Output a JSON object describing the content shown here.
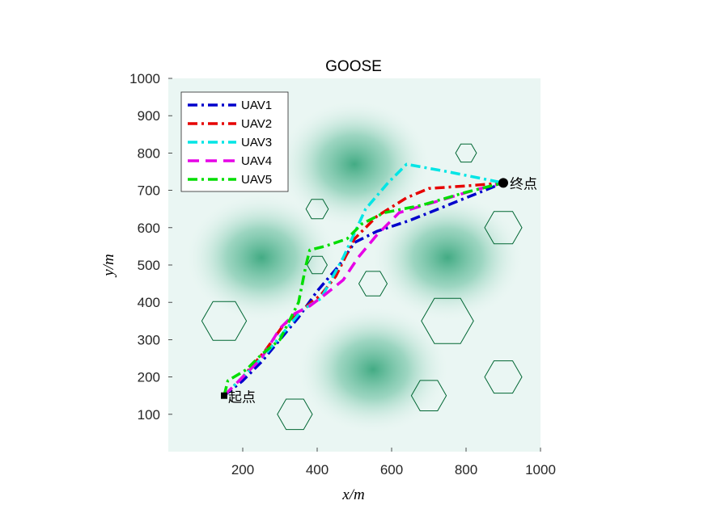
{
  "chart_data": {
    "type": "line",
    "title": "GOOSE",
    "xlabel": "x/m",
    "ylabel": "y/m",
    "xlim": [
      0,
      1000
    ],
    "ylim": [
      0,
      1000
    ],
    "xticks": [
      200,
      400,
      600,
      800,
      1000
    ],
    "yticks": [
      100,
      200,
      300,
      400,
      500,
      600,
      700,
      800,
      900,
      1000
    ],
    "legend_position": "top-left",
    "start": {
      "x": 150,
      "y": 150,
      "label": "起点"
    },
    "goal": {
      "x": 900,
      "y": 720,
      "label": "终点"
    },
    "series": [
      {
        "name": "UAV1",
        "color": "#0000cc",
        "dash": "dashdot",
        "points": [
          [
            150,
            150
          ],
          [
            200,
            190
          ],
          [
            250,
            240
          ],
          [
            300,
            300
          ],
          [
            350,
            360
          ],
          [
            400,
            430
          ],
          [
            460,
            500
          ],
          [
            500,
            560
          ],
          [
            560,
            590
          ],
          [
            650,
            620
          ],
          [
            750,
            660
          ],
          [
            850,
            700
          ],
          [
            900,
            720
          ]
        ]
      },
      {
        "name": "UAV2",
        "color": "#e60000",
        "dash": "dashdot",
        "points": [
          [
            150,
            150
          ],
          [
            200,
            200
          ],
          [
            260,
            270
          ],
          [
            310,
            340
          ],
          [
            360,
            380
          ],
          [
            410,
            420
          ],
          [
            450,
            470
          ],
          [
            500,
            570
          ],
          [
            560,
            630
          ],
          [
            640,
            680
          ],
          [
            700,
            705
          ],
          [
            800,
            712
          ],
          [
            900,
            720
          ]
        ]
      },
      {
        "name": "UAV3",
        "color": "#00e5e5",
        "dash": "dashdot",
        "points": [
          [
            150,
            150
          ],
          [
            200,
            200
          ],
          [
            260,
            260
          ],
          [
            310,
            320
          ],
          [
            360,
            380
          ],
          [
            410,
            410
          ],
          [
            470,
            520
          ],
          [
            530,
            650
          ],
          [
            590,
            720
          ],
          [
            640,
            770
          ],
          [
            750,
            750
          ],
          [
            850,
            730
          ],
          [
            900,
            720
          ]
        ]
      },
      {
        "name": "UAV4",
        "color": "#e600e6",
        "dash": "dash",
        "points": [
          [
            150,
            150
          ],
          [
            200,
            200
          ],
          [
            250,
            250
          ],
          [
            300,
            330
          ],
          [
            340,
            370
          ],
          [
            380,
            390
          ],
          [
            420,
            420
          ],
          [
            470,
            460
          ],
          [
            510,
            520
          ],
          [
            560,
            580
          ],
          [
            620,
            640
          ],
          [
            720,
            670
          ],
          [
            820,
            700
          ],
          [
            900,
            720
          ]
        ]
      },
      {
        "name": "UAV5",
        "color": "#00dd00",
        "dash": "dashdot",
        "points": [
          [
            150,
            150
          ],
          [
            160,
            190
          ],
          [
            210,
            220
          ],
          [
            250,
            260
          ],
          [
            300,
            300
          ],
          [
            350,
            400
          ],
          [
            370,
            500
          ],
          [
            380,
            540
          ],
          [
            420,
            550
          ],
          [
            480,
            570
          ],
          [
            520,
            610
          ],
          [
            580,
            640
          ],
          [
            680,
            660
          ],
          [
            800,
            695
          ],
          [
            900,
            720
          ]
        ]
      }
    ],
    "obstacles": [
      {
        "type": "hexagon",
        "cx": 150,
        "cy": 350,
        "r": 60
      },
      {
        "type": "hexagon",
        "cx": 340,
        "cy": 100,
        "r": 47
      },
      {
        "type": "hexagon",
        "cx": 400,
        "cy": 650,
        "r": 30
      },
      {
        "type": "hexagon",
        "cx": 400,
        "cy": 500,
        "r": 27
      },
      {
        "type": "hexagon",
        "cx": 550,
        "cy": 450,
        "r": 38
      },
      {
        "type": "hexagon",
        "cx": 700,
        "cy": 150,
        "r": 47
      },
      {
        "type": "hexagon",
        "cx": 750,
        "cy": 350,
        "r": 70
      },
      {
        "type": "hexagon",
        "cx": 800,
        "cy": 800,
        "r": 28
      },
      {
        "type": "hexagon",
        "cx": 900,
        "cy": 600,
        "r": 50
      },
      {
        "type": "hexagon",
        "cx": 900,
        "cy": 200,
        "r": 50
      }
    ],
    "terrain_peaks": [
      {
        "x": 500,
        "y": 770
      },
      {
        "x": 550,
        "y": 220
      },
      {
        "x": 250,
        "y": 520
      },
      {
        "x": 750,
        "y": 520
      }
    ],
    "colors": {
      "background": "#eaf6f3",
      "peak": "#3aa77e",
      "obstacle": "#006633"
    }
  }
}
